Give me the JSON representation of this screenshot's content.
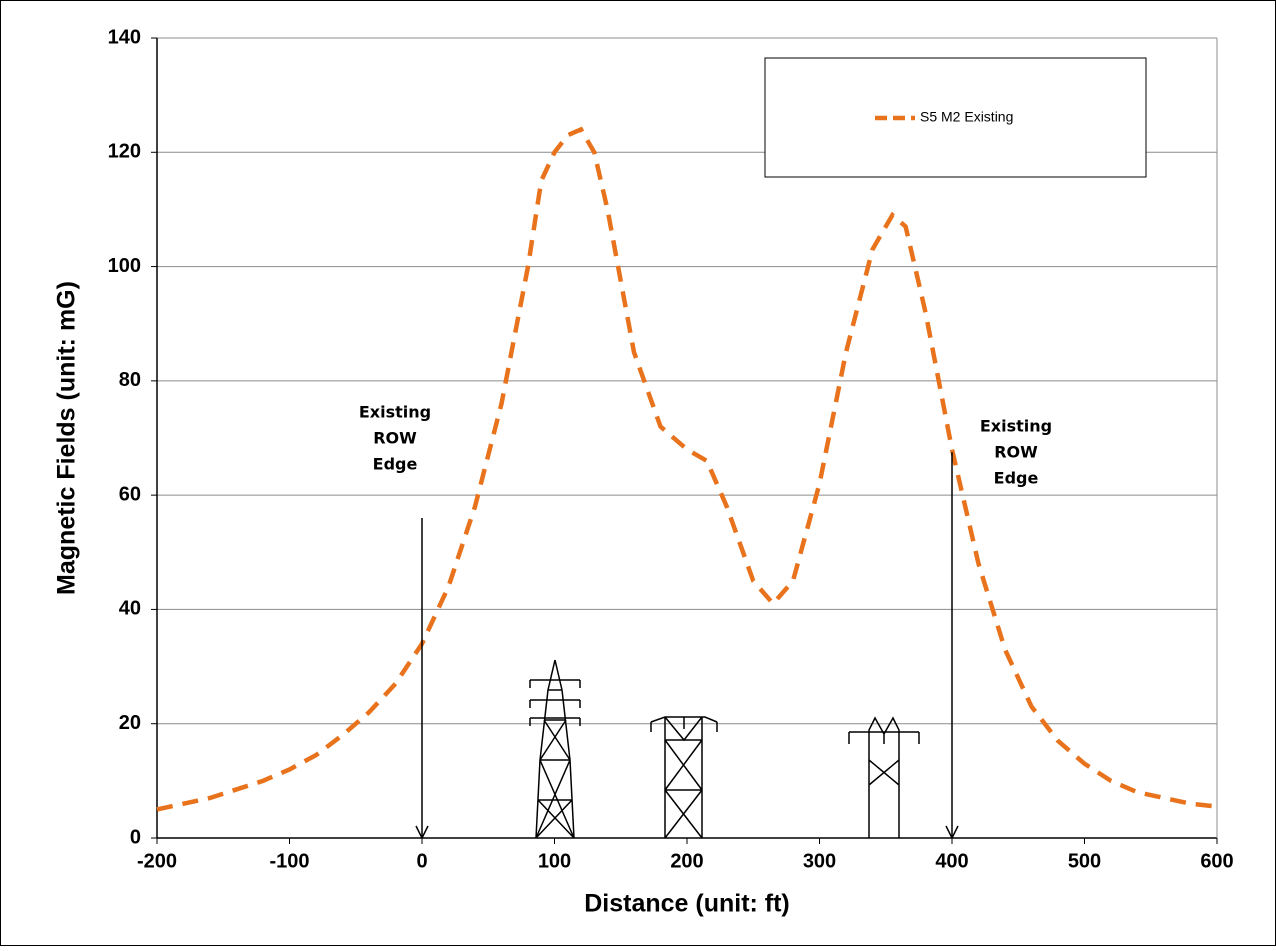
{
  "chart_data": {
    "type": "line",
    "xlabel": "Distance (unit: ft)",
    "ylabel": "Magnetic Fields (unit: mG)",
    "xlim": [
      -200,
      600
    ],
    "xticks": [
      -200,
      -100,
      0,
      100,
      200,
      300,
      400,
      500,
      600
    ],
    "ylim": [
      0,
      140
    ],
    "yticks": [
      0,
      20,
      40,
      60,
      80,
      100,
      120,
      140
    ],
    "grid": true,
    "legend": "upper right",
    "x": [
      -200,
      -180,
      -160,
      -140,
      -120,
      -100,
      -80,
      -60,
      -40,
      -20,
      0,
      20,
      40,
      60,
      80,
      90,
      100,
      110,
      120,
      130,
      140,
      160,
      180,
      200,
      215,
      230,
      250,
      265,
      280,
      300,
      320,
      340,
      355,
      365,
      380,
      400,
      420,
      440,
      460,
      480,
      500,
      520,
      540,
      560,
      580,
      600
    ],
    "series": [
      {
        "name": "S5 M2 Existing",
        "color": "#e8731c",
        "values": [
          5,
          6,
          7,
          8.5,
          10,
          12,
          14.5,
          18,
          22,
          27,
          34,
          44,
          58,
          76,
          100,
          115,
          120,
          123,
          124,
          120,
          110,
          85,
          72,
          68,
          66,
          58,
          45,
          41,
          45,
          62,
          85,
          103,
          109,
          107,
          92,
          68,
          48,
          33,
          23,
          17,
          13,
          10,
          8,
          7,
          6,
          5.5
        ]
      }
    ],
    "annotations": [
      {
        "lines": [
          "Existing",
          "ROW",
          "Edge"
        ],
        "x": 0,
        "y": 56
      },
      {
        "lines": [
          "Existing",
          "ROW",
          "Edge"
        ],
        "x": 400,
        "y": 67.5
      }
    ]
  }
}
